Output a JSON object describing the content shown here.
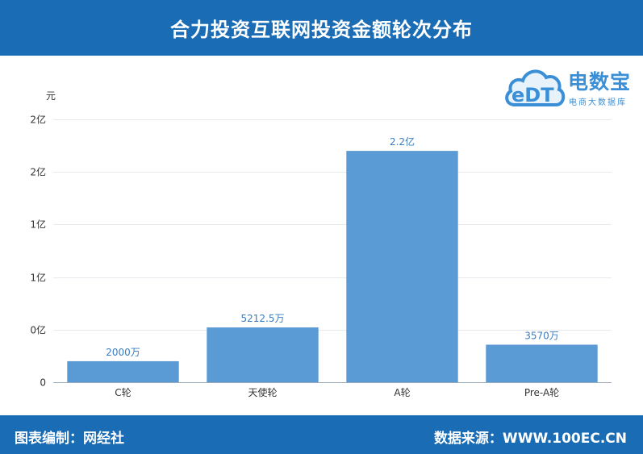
{
  "header": {
    "title": "合力投资互联网投资金额轮次分布"
  },
  "footer": {
    "left": "图表编制：网经社",
    "right": "数据来源：WWW.100EC.CN"
  },
  "logo": {
    "brand": "电数宝",
    "sub": "电商大数据库",
    "mark": "eDT"
  },
  "colors": {
    "header": "#1a6cb5",
    "bar": "#5b9bd5",
    "data_label": "#3a7bbf",
    "brand": "#3a8fd6"
  },
  "chart_data": {
    "type": "bar",
    "unit": "元",
    "categories": [
      "C轮",
      "天使轮",
      "A轮",
      "Pre-A轮"
    ],
    "values": [
      20000000,
      52125000,
      220000000,
      35700000
    ],
    "data_labels": [
      "2000万",
      "5212.5万",
      "2.2亿",
      "3570万"
    ],
    "y_ticks": [
      {
        "value": 0,
        "label": "0"
      },
      {
        "value": 50000000,
        "label": "0亿"
      },
      {
        "value": 100000000,
        "label": "1亿"
      },
      {
        "value": 150000000,
        "label": "1亿"
      },
      {
        "value": 200000000,
        "label": "2亿"
      },
      {
        "value": 250000000,
        "label": "2亿"
      }
    ],
    "ylim": [
      0,
      250000000
    ],
    "grid": true
  }
}
